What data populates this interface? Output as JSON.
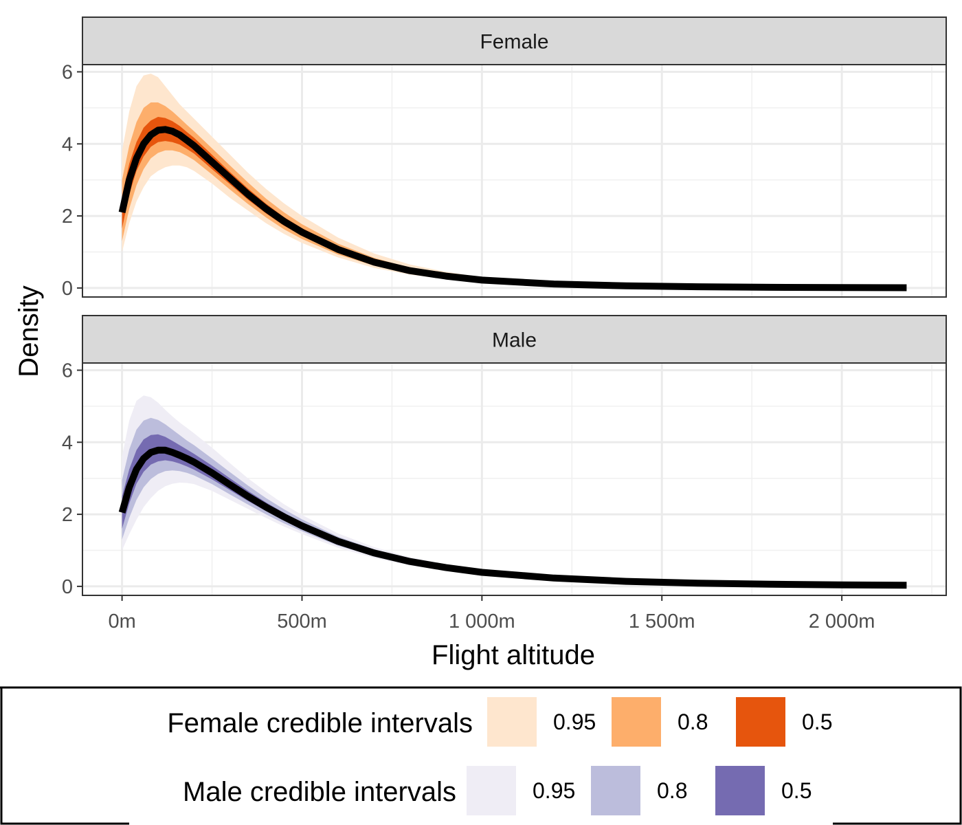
{
  "chart_data": {
    "type": "area",
    "xlabel": "Flight altitude",
    "ylabel": "Density",
    "xlim": [
      -110,
      2290
    ],
    "ylim": [
      -0.25,
      6.2
    ],
    "x_ticks": [
      0,
      500,
      1000,
      1500,
      2000
    ],
    "x_tick_labels": [
      "0m",
      "500m",
      "1 000m",
      "1 500m",
      "2 000m"
    ],
    "y_ticks": [
      0,
      2,
      4,
      6
    ],
    "y_tick_labels": [
      "0",
      "2",
      "4",
      "6"
    ],
    "grid": true,
    "facets": [
      {
        "label": "Female",
        "series_name": "Female credible intervals",
        "x": [
          0,
          20,
          40,
          60,
          80,
          100,
          120,
          140,
          160,
          180,
          200,
          250,
          300,
          350,
          400,
          450,
          500,
          600,
          700,
          800,
          900,
          1000,
          1200,
          1400,
          1600,
          1800,
          2000,
          2180
        ],
        "median": [
          2.1,
          3.0,
          3.6,
          4.0,
          4.25,
          4.38,
          4.4,
          4.35,
          4.25,
          4.1,
          3.95,
          3.5,
          3.05,
          2.6,
          2.2,
          1.85,
          1.55,
          1.07,
          0.72,
          0.48,
          0.33,
          0.22,
          0.11,
          0.06,
          0.035,
          0.02,
          0.012,
          0.008
        ],
        "bands": [
          {
            "level": "0.95",
            "lower": [
              1.0,
              1.8,
              2.4,
              2.8,
              3.1,
              3.25,
              3.35,
              3.4,
              3.4,
              3.35,
              3.25,
              2.9,
              2.5,
              2.15,
              1.8,
              1.5,
              1.25,
              0.85,
              0.56,
              0.37,
              0.25,
              0.17,
              0.08,
              0.04,
              0.025,
              0.014,
              0.008,
              0.005
            ],
            "upper": [
              3.8,
              4.9,
              5.6,
              5.9,
              5.95,
              5.85,
              5.6,
              5.35,
              5.1,
              4.9,
              4.7,
              4.2,
              3.7,
              3.2,
              2.75,
              2.35,
              2.0,
              1.4,
              0.96,
              0.65,
              0.45,
              0.3,
              0.15,
              0.08,
              0.045,
              0.026,
              0.016,
              0.011
            ]
          },
          {
            "level": "0.8",
            "lower": [
              1.3,
              2.2,
              2.85,
              3.3,
              3.6,
              3.75,
              3.82,
              3.82,
              3.77,
              3.67,
              3.55,
              3.15,
              2.73,
              2.33,
              1.96,
              1.63,
              1.36,
              0.93,
              0.62,
              0.41,
              0.28,
              0.19,
              0.09,
              0.05,
              0.028,
              0.016,
              0.009,
              0.006
            ],
            "upper": [
              3.0,
              3.95,
              4.6,
              5.0,
              5.15,
              5.15,
              5.05,
              4.9,
              4.72,
              4.53,
              4.35,
              3.88,
              3.4,
              2.93,
              2.48,
              2.1,
              1.77,
              1.23,
              0.84,
              0.56,
              0.39,
              0.26,
              0.13,
              0.07,
              0.04,
              0.023,
              0.014,
              0.01
            ]
          },
          {
            "level": "0.5",
            "lower": [
              1.65,
              2.6,
              3.25,
              3.65,
              3.92,
              4.05,
              4.08,
              4.05,
              3.98,
              3.86,
              3.73,
              3.3,
              2.88,
              2.45,
              2.07,
              1.73,
              1.45,
              0.99,
              0.66,
              0.44,
              0.3,
              0.2,
              0.1,
              0.055,
              0.031,
              0.018,
              0.01,
              0.007
            ],
            "upper": [
              2.55,
              3.45,
              4.05,
              4.45,
              4.65,
              4.75,
              4.72,
              4.63,
              4.5,
              4.33,
              4.17,
              3.7,
              3.22,
              2.76,
              2.34,
              1.97,
              1.66,
              1.15,
              0.78,
              0.52,
              0.36,
              0.24,
              0.12,
              0.065,
              0.038,
              0.022,
              0.013,
              0.009
            ]
          }
        ]
      },
      {
        "label": "Male",
        "series_name": "Male credible intervals",
        "x": [
          0,
          20,
          40,
          60,
          80,
          100,
          120,
          140,
          160,
          180,
          200,
          250,
          300,
          350,
          400,
          450,
          500,
          600,
          700,
          800,
          900,
          1000,
          1200,
          1400,
          1600,
          1800,
          2000,
          2180
        ],
        "median": [
          2.05,
          2.75,
          3.25,
          3.55,
          3.72,
          3.78,
          3.78,
          3.72,
          3.64,
          3.55,
          3.45,
          3.15,
          2.82,
          2.5,
          2.2,
          1.93,
          1.68,
          1.25,
          0.93,
          0.69,
          0.52,
          0.39,
          0.23,
          0.14,
          0.09,
          0.06,
          0.04,
          0.03
        ],
        "bands": [
          {
            "level": "0.95",
            "lower": [
              1.0,
              1.45,
              1.85,
              2.2,
              2.45,
              2.65,
              2.78,
              2.85,
              2.88,
              2.87,
              2.84,
              2.65,
              2.4,
              2.15,
              1.9,
              1.66,
              1.45,
              1.07,
              0.79,
              0.58,
              0.43,
              0.32,
              0.19,
              0.11,
              0.07,
              0.045,
              0.03,
              0.022
            ],
            "upper": [
              3.6,
              4.6,
              5.15,
              5.3,
              5.25,
              5.1,
              4.9,
              4.72,
              4.55,
              4.4,
              4.25,
              3.85,
              3.42,
              3.0,
              2.63,
              2.28,
              1.98,
              1.47,
              1.09,
              0.81,
              0.61,
              0.46,
              0.27,
              0.17,
              0.11,
              0.075,
              0.05,
              0.038
            ]
          },
          {
            "level": "0.8",
            "lower": [
              1.3,
              1.9,
              2.4,
              2.75,
              2.98,
              3.12,
              3.2,
              3.22,
              3.2,
              3.15,
              3.08,
              2.84,
              2.55,
              2.27,
              2.0,
              1.75,
              1.53,
              1.13,
              0.84,
              0.62,
              0.46,
              0.34,
              0.2,
              0.12,
              0.077,
              0.05,
              0.033,
              0.025
            ],
            "upper": [
              2.95,
              3.8,
              4.35,
              4.6,
              4.68,
              4.62,
              4.5,
              4.35,
              4.2,
              4.05,
              3.92,
              3.55,
              3.17,
              2.8,
              2.45,
              2.14,
              1.86,
              1.38,
              1.03,
              0.76,
              0.58,
              0.43,
              0.26,
              0.16,
              0.1,
              0.068,
              0.046,
              0.035
            ]
          },
          {
            "level": "0.5",
            "lower": [
              1.6,
              2.3,
              2.85,
              3.18,
              3.38,
              3.47,
              3.5,
              3.47,
              3.41,
              3.33,
              3.24,
              2.97,
              2.67,
              2.37,
              2.09,
              1.83,
              1.6,
              1.19,
              0.88,
              0.65,
              0.49,
              0.36,
              0.21,
              0.13,
              0.083,
              0.055,
              0.036,
              0.027
            ],
            "upper": [
              2.5,
              3.25,
              3.78,
              4.08,
              4.2,
              4.22,
              4.15,
              4.04,
              3.92,
              3.8,
              3.68,
              3.35,
              3.0,
              2.65,
              2.33,
              2.04,
              1.77,
              1.32,
              0.98,
              0.73,
              0.55,
              0.41,
              0.25,
              0.15,
              0.096,
              0.064,
              0.043,
              0.032
            ]
          }
        ]
      }
    ],
    "legend": {
      "placement": "bottom",
      "groups": [
        {
          "title": "Female credible intervals",
          "items": [
            {
              "label": "0.95",
              "color": "#fee6ce"
            },
            {
              "label": "0.8",
              "color": "#fdae6b"
            },
            {
              "label": "0.5",
              "color": "#e6550d"
            }
          ]
        },
        {
          "title": "Male credible intervals",
          "items": [
            {
              "label": "0.95",
              "color": "#efedf5"
            },
            {
              "label": "0.8",
              "color": "#bcbddc"
            },
            {
              "label": "0.5",
              "color": "#756bb1"
            }
          ]
        }
      ]
    },
    "median_line_color": "#000000",
    "strip_fill": "#d9d9d9"
  }
}
